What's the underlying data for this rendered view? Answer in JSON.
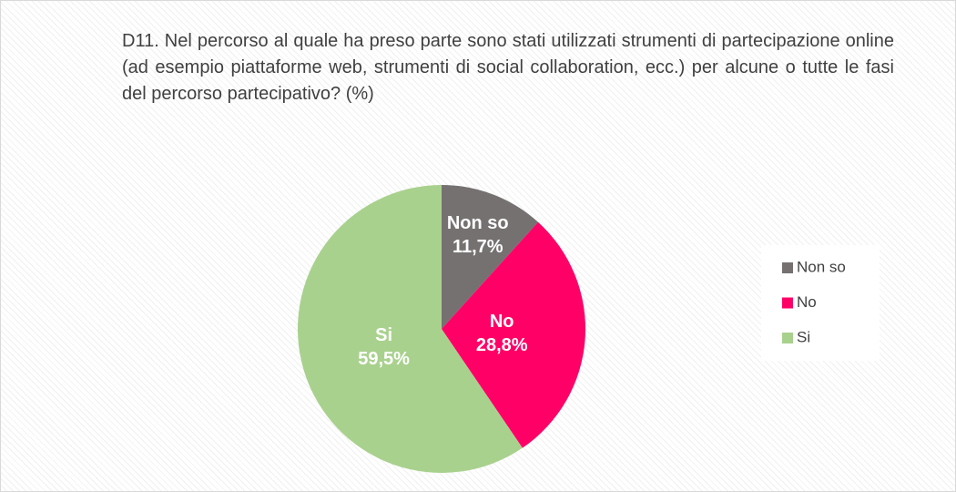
{
  "chart_data": {
    "type": "pie",
    "title": "D11. Nel percorso al quale ha preso parte sono stati utilizzati strumenti di partecipazione online (ad esempio piattaforme web, strumenti di social collaboration, ecc.) per alcune o tutte le fasi del percorso partecipativo? (%)",
    "categories": [
      "Non so",
      "No",
      "Si"
    ],
    "values": [
      11.7,
      28.8,
      59.5
    ],
    "value_labels": [
      "11,7%",
      "28,8%",
      "59,5%"
    ],
    "colors": [
      "#767171",
      "#ff0066",
      "#a9d18e"
    ],
    "legend": "right"
  }
}
